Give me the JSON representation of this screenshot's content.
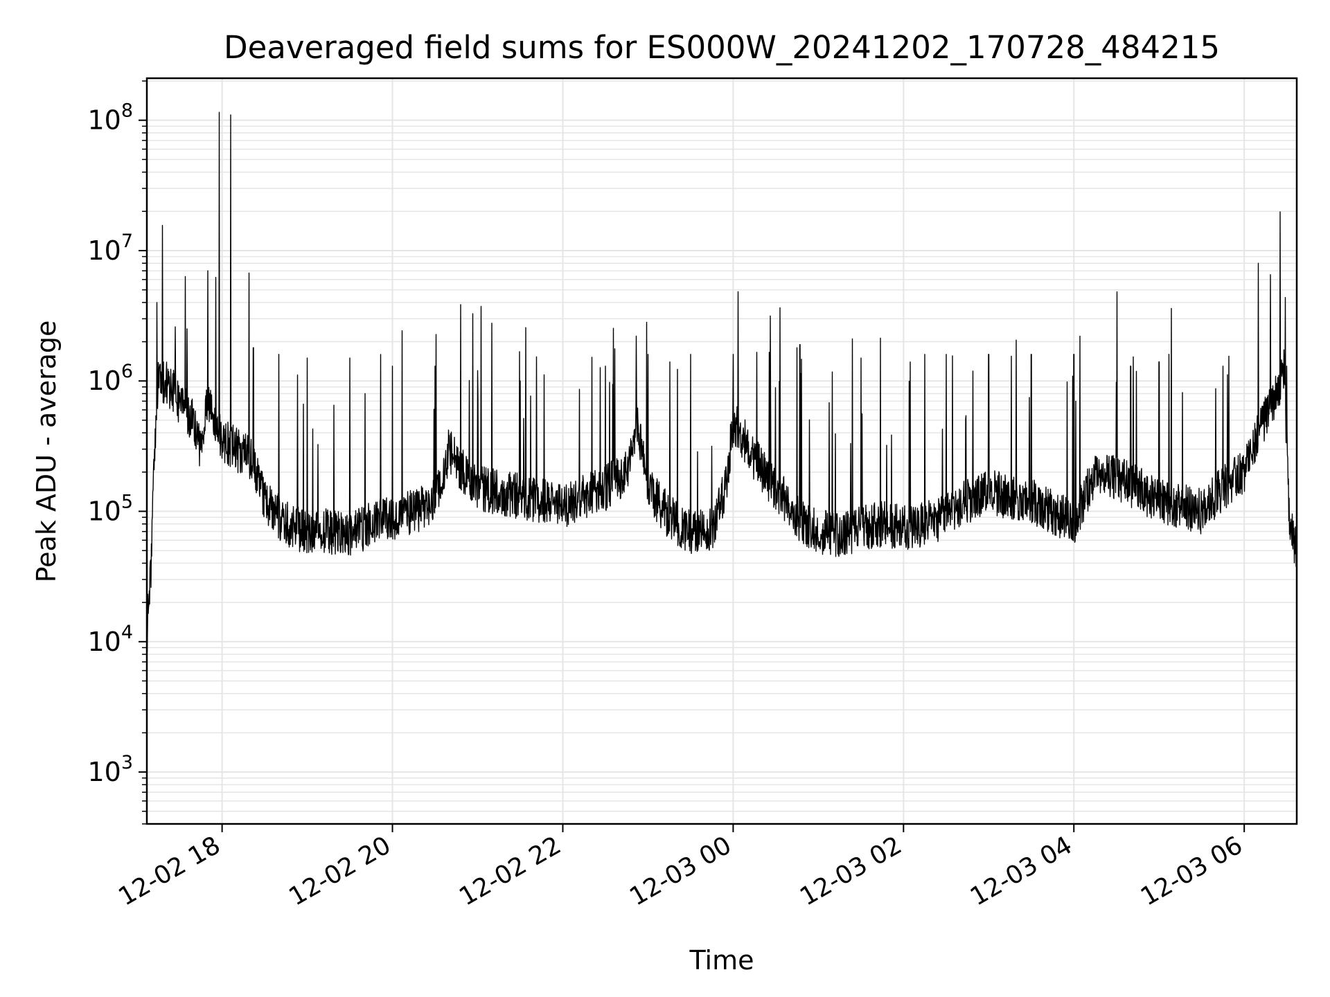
{
  "chart_data": {
    "type": "line",
    "title": "Deaveraged field sums for ES000W_20241202_170728_484215",
    "xlabel": "Time",
    "ylabel": "Peak ADU - average",
    "y_scale": "log",
    "ylim": [
      400,
      210000000
    ],
    "xlim": [
      "2024-12-02 17:07",
      "2024-12-03 06:37"
    ],
    "grid": true,
    "line_color": "#000000",
    "grid_color": "#e5e5e5",
    "x_ticks": [
      {
        "value": "2024-12-02 18:00",
        "label": "12-02 18"
      },
      {
        "value": "2024-12-02 20:00",
        "label": "12-02 20"
      },
      {
        "value": "2024-12-02 22:00",
        "label": "12-02 22"
      },
      {
        "value": "2024-12-03 00:00",
        "label": "12-03 00"
      },
      {
        "value": "2024-12-03 02:00",
        "label": "12-03 02"
      },
      {
        "value": "2024-12-03 04:00",
        "label": "12-03 04"
      },
      {
        "value": "2024-12-03 06:00",
        "label": "12-03 06"
      }
    ],
    "y_ticks": [
      {
        "value": 1000,
        "base": "10",
        "exp": "3"
      },
      {
        "value": 10000,
        "base": "10",
        "exp": "4"
      },
      {
        "value": 100000,
        "base": "10",
        "exp": "5"
      },
      {
        "value": 1000000,
        "base": "10",
        "exp": "6"
      },
      {
        "value": 10000000,
        "base": "10",
        "exp": "7"
      },
      {
        "value": 100000000,
        "base": "10",
        "exp": "8"
      }
    ],
    "series": [
      {
        "points": [
          [
            "2024-12-02 17:07",
            8000
          ],
          [
            "2024-12-02 17:08",
            20000
          ],
          [
            "2024-12-02 17:10",
            40000
          ],
          [
            "2024-12-02 17:13",
            400000
          ],
          [
            "2024-12-02 17:15",
            1000000
          ],
          [
            "2024-12-02 17:20",
            1000000
          ],
          [
            "2024-12-02 17:30",
            700000
          ],
          [
            "2024-12-02 17:40",
            500000
          ],
          [
            "2024-12-02 17:45",
            300000
          ],
          [
            "2024-12-02 17:50",
            700000
          ],
          [
            "2024-12-02 17:55",
            500000
          ],
          [
            "2024-12-02 18:00",
            350000
          ],
          [
            "2024-12-02 18:10",
            300000
          ],
          [
            "2024-12-02 18:20",
            250000
          ],
          [
            "2024-12-02 18:30",
            120000
          ],
          [
            "2024-12-02 18:40",
            90000
          ],
          [
            "2024-12-02 18:50",
            75000
          ],
          [
            "2024-12-02 19:00",
            70000
          ],
          [
            "2024-12-02 19:15",
            70000
          ],
          [
            "2024-12-02 19:30",
            65000
          ],
          [
            "2024-12-02 19:45",
            80000
          ],
          [
            "2024-12-02 20:00",
            90000
          ],
          [
            "2024-12-02 20:15",
            100000
          ],
          [
            "2024-12-02 20:30",
            120000
          ],
          [
            "2024-12-02 20:40",
            300000
          ],
          [
            "2024-12-02 20:50",
            200000
          ],
          [
            "2024-12-02 21:00",
            150000
          ],
          [
            "2024-12-02 21:15",
            140000
          ],
          [
            "2024-12-02 21:30",
            130000
          ],
          [
            "2024-12-02 21:45",
            120000
          ],
          [
            "2024-12-02 22:00",
            110000
          ],
          [
            "2024-12-02 22:15",
            130000
          ],
          [
            "2024-12-02 22:30",
            150000
          ],
          [
            "2024-12-02 22:45",
            200000
          ],
          [
            "2024-12-02 22:52",
            500000
          ],
          [
            "2024-12-02 23:00",
            150000
          ],
          [
            "2024-12-02 23:15",
            90000
          ],
          [
            "2024-12-02 23:30",
            70000
          ],
          [
            "2024-12-02 23:45",
            70000
          ],
          [
            "2024-12-02 23:55",
            150000
          ],
          [
            "2024-12-03 00:00",
            500000
          ],
          [
            "2024-12-03 00:15",
            250000
          ],
          [
            "2024-12-03 00:30",
            150000
          ],
          [
            "2024-12-03 00:45",
            90000
          ],
          [
            "2024-12-03 01:00",
            70000
          ],
          [
            "2024-12-03 01:15",
            65000
          ],
          [
            "2024-12-03 01:30",
            75000
          ],
          [
            "2024-12-03 01:45",
            80000
          ],
          [
            "2024-12-03 02:00",
            75000
          ],
          [
            "2024-12-03 02:15",
            80000
          ],
          [
            "2024-12-03 02:30",
            90000
          ],
          [
            "2024-12-03 02:45",
            120000
          ],
          [
            "2024-12-03 03:00",
            140000
          ],
          [
            "2024-12-03 03:15",
            130000
          ],
          [
            "2024-12-03 03:30",
            120000
          ],
          [
            "2024-12-03 03:45",
            100000
          ],
          [
            "2024-12-03 04:00",
            80000
          ],
          [
            "2024-12-03 04:15",
            200000
          ],
          [
            "2024-12-03 04:30",
            180000
          ],
          [
            "2024-12-03 04:45",
            150000
          ],
          [
            "2024-12-03 05:00",
            120000
          ],
          [
            "2024-12-03 05:15",
            110000
          ],
          [
            "2024-12-03 05:30",
            100000
          ],
          [
            "2024-12-03 05:45",
            150000
          ],
          [
            "2024-12-03 06:00",
            200000
          ],
          [
            "2024-12-03 06:10",
            400000
          ],
          [
            "2024-12-03 06:20",
            700000
          ],
          [
            "2024-12-03 06:28",
            1200000
          ],
          [
            "2024-12-03 06:32",
            80000
          ],
          [
            "2024-12-03 06:37",
            50000
          ]
        ]
      }
    ],
    "spikes": [
      [
        "2024-12-02 17:14",
        4000000
      ],
      [
        "2024-12-02 17:27",
        2600000
      ],
      [
        "2024-12-02 17:50",
        7000000
      ],
      [
        "2024-12-02 17:58",
        115000000
      ],
      [
        "2024-12-02 18:06",
        110000000
      ],
      [
        "2024-12-02 18:22",
        1800000
      ],
      [
        "2024-12-02 18:40",
        1600000
      ],
      [
        "2024-12-02 19:00",
        1500000
      ],
      [
        "2024-12-02 19:30",
        1500000
      ],
      [
        "2024-12-02 20:00",
        1300000
      ],
      [
        "2024-12-02 20:30",
        1300000
      ],
      [
        "2024-12-02 21:00",
        1200000
      ],
      [
        "2024-12-02 21:30",
        1000000
      ],
      [
        "2024-12-02 22:30",
        1300000
      ],
      [
        "2024-12-02 23:00",
        1600000
      ],
      [
        "2024-12-02 23:30",
        1600000
      ],
      [
        "2024-12-03 00:00",
        1600000
      ],
      [
        "2024-12-03 00:45",
        1800000
      ],
      [
        "2024-12-03 00:47",
        1900000
      ],
      [
        "2024-12-03 01:30",
        1500000
      ],
      [
        "2024-12-03 02:15",
        1600000
      ],
      [
        "2024-12-03 02:30",
        1600000
      ],
      [
        "2024-12-03 03:00",
        1600000
      ],
      [
        "2024-12-03 03:30",
        1600000
      ],
      [
        "2024-12-03 04:00",
        1600000
      ],
      [
        "2024-12-03 04:40",
        1300000
      ],
      [
        "2024-12-03 05:00",
        1400000
      ],
      [
        "2024-12-03 05:45",
        1300000
      ],
      [
        "2024-12-03 06:10",
        8000000
      ],
      [
        "2024-12-03 06:30",
        1300000
      ]
    ]
  }
}
